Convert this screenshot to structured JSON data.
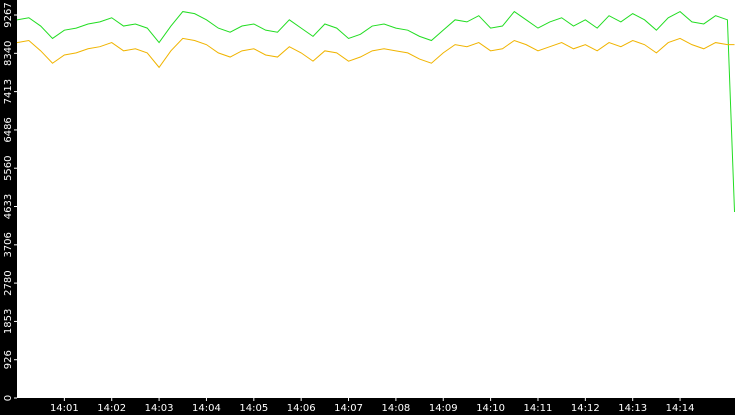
{
  "chart_data": {
    "type": "line",
    "x": [
      0,
      0.25,
      0.5,
      0.75,
      1,
      1.25,
      1.5,
      1.75,
      2,
      2.25,
      2.5,
      2.75,
      3,
      3.25,
      3.5,
      3.75,
      4,
      4.25,
      4.5,
      4.75,
      5,
      5.25,
      5.5,
      5.75,
      6,
      6.25,
      6.5,
      6.75,
      7,
      7.25,
      7.5,
      7.75,
      8,
      8.25,
      8.5,
      8.75,
      9,
      9.25,
      9.5,
      9.75,
      10,
      10.25,
      10.5,
      10.75,
      11,
      11.25,
      11.5,
      11.75,
      12,
      12.25,
      12.5,
      12.75,
      13,
      13.25,
      13.5,
      13.75,
      14,
      14.25,
      14.5,
      14.75,
      15,
      15.15
    ],
    "series": [
      {
        "color": "#22dd22",
        "values": [
          9150,
          9200,
          9000,
          8700,
          8900,
          8950,
          9050,
          9100,
          9200,
          9000,
          9050,
          8950,
          8600,
          9000,
          9350,
          9300,
          9150,
          8950,
          8850,
          9000,
          9050,
          8900,
          8850,
          9150,
          8950,
          8750,
          9050,
          8950,
          8700,
          8800,
          9000,
          9050,
          8950,
          8900,
          8750,
          8650,
          8900,
          9150,
          9100,
          9250,
          8950,
          9000,
          9350,
          9150,
          8950,
          9100,
          9200,
          9000,
          9150,
          8950,
          9250,
          9100,
          9300,
          9150,
          8900,
          9200,
          9350,
          9100,
          9050,
          9250,
          9150,
          4500
        ]
      },
      {
        "color": "#f0b400",
        "values": [
          8600,
          8650,
          8400,
          8100,
          8300,
          8350,
          8450,
          8500,
          8600,
          8400,
          8450,
          8350,
          8000,
          8400,
          8700,
          8650,
          8550,
          8350,
          8250,
          8400,
          8450,
          8300,
          8250,
          8500,
          8350,
          8150,
          8400,
          8350,
          8150,
          8250,
          8400,
          8450,
          8400,
          8350,
          8200,
          8100,
          8350,
          8550,
          8500,
          8600,
          8400,
          8450,
          8650,
          8550,
          8400,
          8500,
          8600,
          8450,
          8550,
          8400,
          8600,
          8500,
          8650,
          8550,
          8350,
          8600,
          8700,
          8550,
          8450,
          8600,
          8550,
          8550
        ]
      }
    ],
    "xlim": [
      0,
      15.16
    ],
    "xticks": [
      {
        "value": 1,
        "label": "14:01"
      },
      {
        "value": 2,
        "label": "14:02"
      },
      {
        "value": 3,
        "label": "14:03"
      },
      {
        "value": 4,
        "label": "14:04"
      },
      {
        "value": 5,
        "label": "14:05"
      },
      {
        "value": 6,
        "label": "14:06"
      },
      {
        "value": 7,
        "label": "14:07"
      },
      {
        "value": 8,
        "label": "14:08"
      },
      {
        "value": 9,
        "label": "14:09"
      },
      {
        "value": 10,
        "label": "14:10"
      },
      {
        "value": 11,
        "label": "14:11"
      },
      {
        "value": 12,
        "label": "14:12"
      },
      {
        "value": 13,
        "label": "14:13"
      },
      {
        "value": 14,
        "label": "14:14"
      }
    ],
    "ylim": [
      0,
      9630
    ],
    "yticks": [
      0,
      926,
      1853,
      2780,
      3706,
      4633,
      5560,
      6486,
      7413,
      8340,
      9267
    ]
  }
}
